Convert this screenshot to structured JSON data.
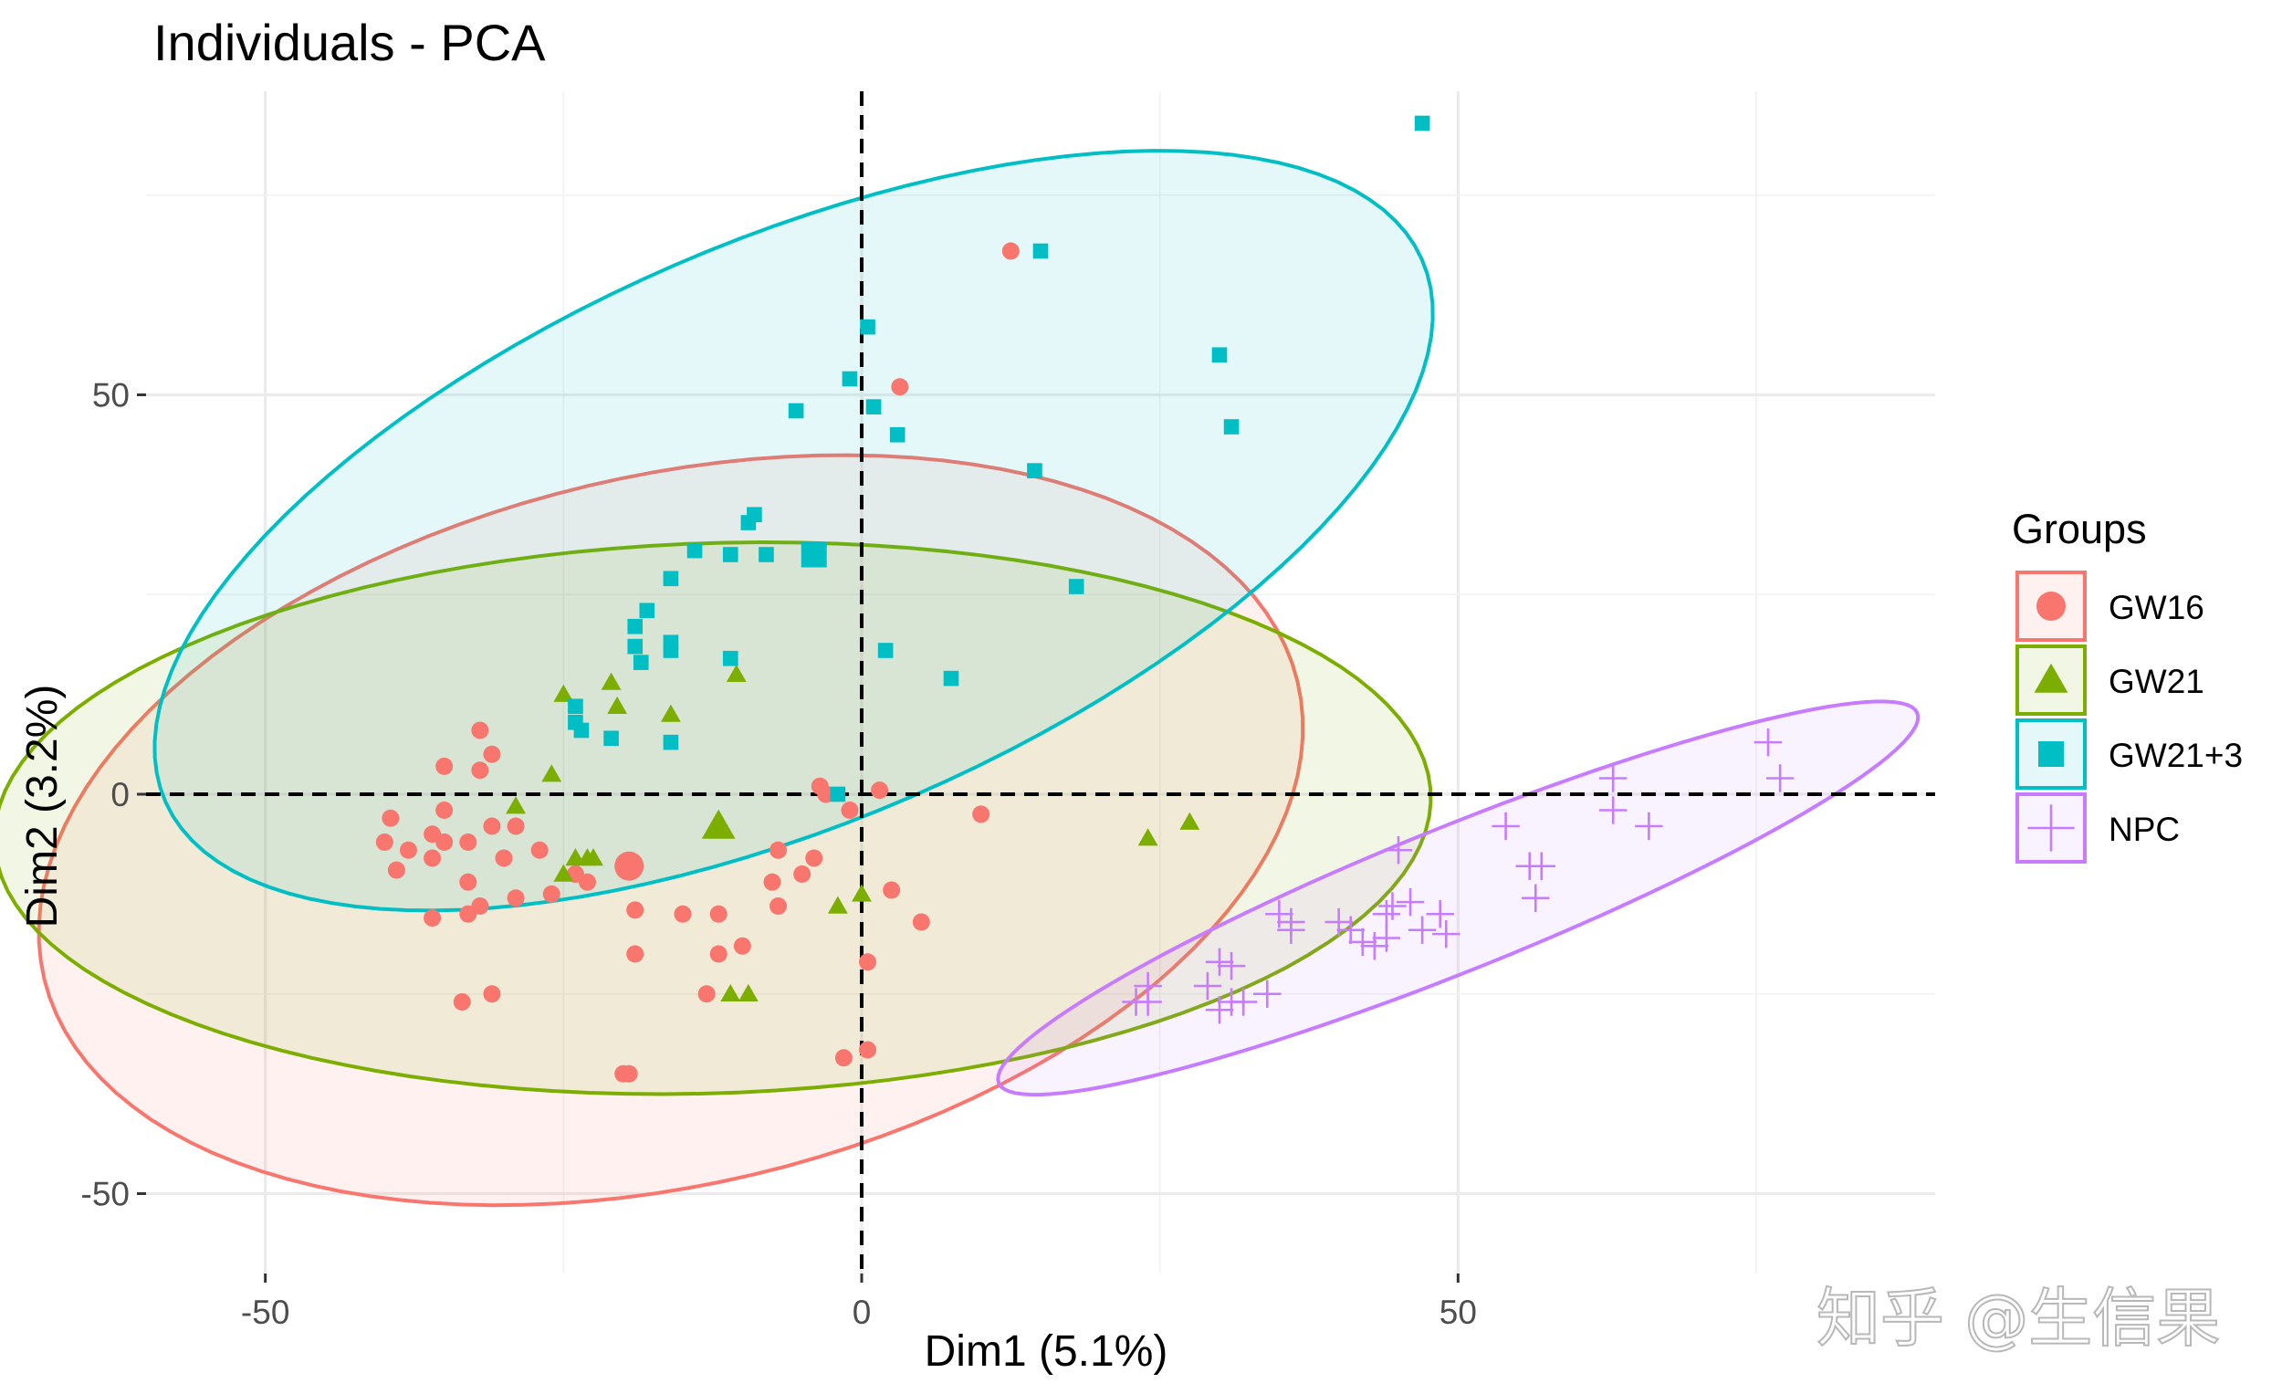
{
  "chart_data": {
    "type": "scatter",
    "title": "Individuals - PCA",
    "xlabel": "Dim1 (5.1%)",
    "ylabel": "Dim2 (3.2%)",
    "xlim": [
      -60,
      90
    ],
    "ylim": [
      -60,
      88
    ],
    "xticks": [
      -50,
      0,
      50
    ],
    "yticks": [
      -50,
      0,
      50
    ],
    "xtick_labels": [
      "-50",
      "0",
      "50"
    ],
    "ytick_labels": [
      "-50",
      "0",
      "50"
    ],
    "grid": true,
    "reference_lines": {
      "x": 0,
      "y": 0,
      "style": "dashed"
    },
    "legend": {
      "title": "Groups",
      "position": "right"
    },
    "series": [
      {
        "name": "GW16",
        "color": "#F8766D",
        "marker": "circle",
        "points": [
          [
            12.5,
            68
          ],
          [
            3.2,
            51
          ],
          [
            -1,
            -2
          ],
          [
            1.5,
            0.5
          ],
          [
            -3.5,
            1
          ],
          [
            -3,
            0
          ],
          [
            10,
            -2.5
          ],
          [
            -23,
            -11
          ],
          [
            -32,
            8
          ],
          [
            -31,
            5
          ],
          [
            -32,
            3
          ],
          [
            -35,
            3.5
          ],
          [
            -35,
            -2
          ],
          [
            -36,
            -5
          ],
          [
            -38,
            -7
          ],
          [
            -39.5,
            -3
          ],
          [
            -40,
            -6
          ],
          [
            -39,
            -9.5
          ],
          [
            -36,
            -8
          ],
          [
            -35,
            -6
          ],
          [
            -33,
            -6
          ],
          [
            -33,
            -11
          ],
          [
            -31,
            -4
          ],
          [
            -29,
            -4
          ],
          [
            -27,
            -7
          ],
          [
            -26,
            -12.5
          ],
          [
            -30,
            -8
          ],
          [
            -33,
            -15
          ],
          [
            -32,
            -14
          ],
          [
            -36,
            -15.5
          ],
          [
            -29,
            -13
          ],
          [
            -24,
            -10
          ],
          [
            -33.5,
            -26
          ],
          [
            -31,
            -25
          ],
          [
            -24,
            -10
          ],
          [
            -19,
            -14.5
          ],
          [
            -19,
            -20
          ],
          [
            -15,
            -15
          ],
          [
            -13,
            -25
          ],
          [
            -12,
            -15
          ],
          [
            -12,
            -20
          ],
          [
            -7,
            -7
          ],
          [
            -5,
            -10
          ],
          [
            -7,
            -14
          ],
          [
            -7.5,
            -11
          ],
          [
            -4,
            -8
          ],
          [
            2.5,
            -12
          ],
          [
            5,
            -16
          ],
          [
            0.5,
            -21
          ],
          [
            0.5,
            -32
          ],
          [
            -1.5,
            -33
          ],
          [
            -20,
            -35
          ],
          [
            -19.5,
            -35
          ],
          [
            -10,
            -19
          ]
        ]
      },
      {
        "name": "GW21",
        "color": "#7CAE00",
        "marker": "triangle",
        "points": [
          [
            -25,
            12.5
          ],
          [
            -21,
            14
          ],
          [
            -20.5,
            11
          ],
          [
            -16,
            10
          ],
          [
            -10.5,
            15
          ],
          [
            -26,
            2.5
          ],
          [
            -29,
            -1.5
          ],
          [
            -24,
            -8
          ],
          [
            -23,
            -8
          ],
          [
            -22.5,
            -8
          ],
          [
            -25,
            -10
          ],
          [
            -2,
            -14
          ],
          [
            0,
            -12.5
          ],
          [
            -11,
            -25
          ],
          [
            -9.5,
            -25
          ],
          [
            24,
            -5.5
          ],
          [
            27.5,
            -3.5
          ]
        ]
      },
      {
        "name": "GW21+3",
        "color": "#00BFC4",
        "marker": "square",
        "points": [
          [
            47,
            84
          ],
          [
            15,
            68
          ],
          [
            0.5,
            58.5
          ],
          [
            30,
            55
          ],
          [
            -1,
            52
          ],
          [
            1,
            48.5
          ],
          [
            -5.5,
            48
          ],
          [
            3,
            45
          ],
          [
            31,
            46
          ],
          [
            14.5,
            40.5
          ],
          [
            -9,
            35
          ],
          [
            -9.5,
            34
          ],
          [
            -14,
            30.5
          ],
          [
            -11,
            30
          ],
          [
            -8,
            30
          ],
          [
            -16,
            27
          ],
          [
            18,
            26
          ],
          [
            -18,
            23
          ],
          [
            -19,
            21
          ],
          [
            -16,
            19
          ],
          [
            -16,
            18
          ],
          [
            -19,
            18.5
          ],
          [
            -18.5,
            16.5
          ],
          [
            -11,
            17
          ],
          [
            2,
            18
          ],
          [
            7.5,
            14.5
          ],
          [
            -24,
            11
          ],
          [
            -24,
            9
          ],
          [
            -23.5,
            8
          ],
          [
            -21,
            7
          ],
          [
            -16,
            6.5
          ],
          [
            -2,
            0
          ]
        ]
      },
      {
        "name": "NPC",
        "color": "#C77CFF",
        "marker": "plus",
        "points": [
          [
            76,
            6.5
          ],
          [
            77,
            2
          ],
          [
            63,
            2
          ],
          [
            63,
            -2
          ],
          [
            66,
            -4
          ],
          [
            54,
            -4
          ],
          [
            57,
            -9
          ],
          [
            56,
            -9
          ],
          [
            56.5,
            -13
          ],
          [
            45,
            -7
          ],
          [
            44,
            -15
          ],
          [
            44.5,
            -14
          ],
          [
            46,
            -13.5
          ],
          [
            48.5,
            -15
          ],
          [
            47,
            -17
          ],
          [
            49,
            -17.5
          ],
          [
            40,
            -16
          ],
          [
            41,
            -17
          ],
          [
            42,
            -18.5
          ],
          [
            43,
            -19
          ],
          [
            44,
            -18
          ],
          [
            35,
            -15
          ],
          [
            36,
            -16
          ],
          [
            36,
            -17
          ],
          [
            30,
            -21
          ],
          [
            31,
            -21.5
          ],
          [
            29,
            -24
          ],
          [
            24,
            -24
          ],
          [
            24,
            -26
          ],
          [
            23,
            -26
          ],
          [
            30,
            -27
          ],
          [
            31,
            -26
          ],
          [
            34,
            -25
          ],
          [
            32,
            -26
          ]
        ]
      }
    ],
    "centroids": [
      {
        "name": "GW16",
        "x": -19.5,
        "y": -9
      },
      {
        "name": "GW21",
        "x": -12,
        "y": -4
      },
      {
        "name": "GW21+3",
        "x": -4,
        "y": 30
      }
    ],
    "ellipses": [
      {
        "name": "GW16",
        "cx": -16,
        "cy": -4.5,
        "rx": 57,
        "ry": 42,
        "angle": 33
      },
      {
        "name": "GW21",
        "cx": -12.5,
        "cy": -3,
        "rx": 60.3,
        "ry": 34.4,
        "angle": 3.6
      },
      {
        "name": "GW21+3",
        "cx": -5.7,
        "cy": 33,
        "rx": 63.7,
        "ry": 32.8,
        "angle": 39.1
      },
      {
        "name": "NPC",
        "cx": 50,
        "cy": -13,
        "rx": 45,
        "ry": 8.3,
        "angle": 31.6
      }
    ],
    "watermark": "知乎 @生信果"
  }
}
